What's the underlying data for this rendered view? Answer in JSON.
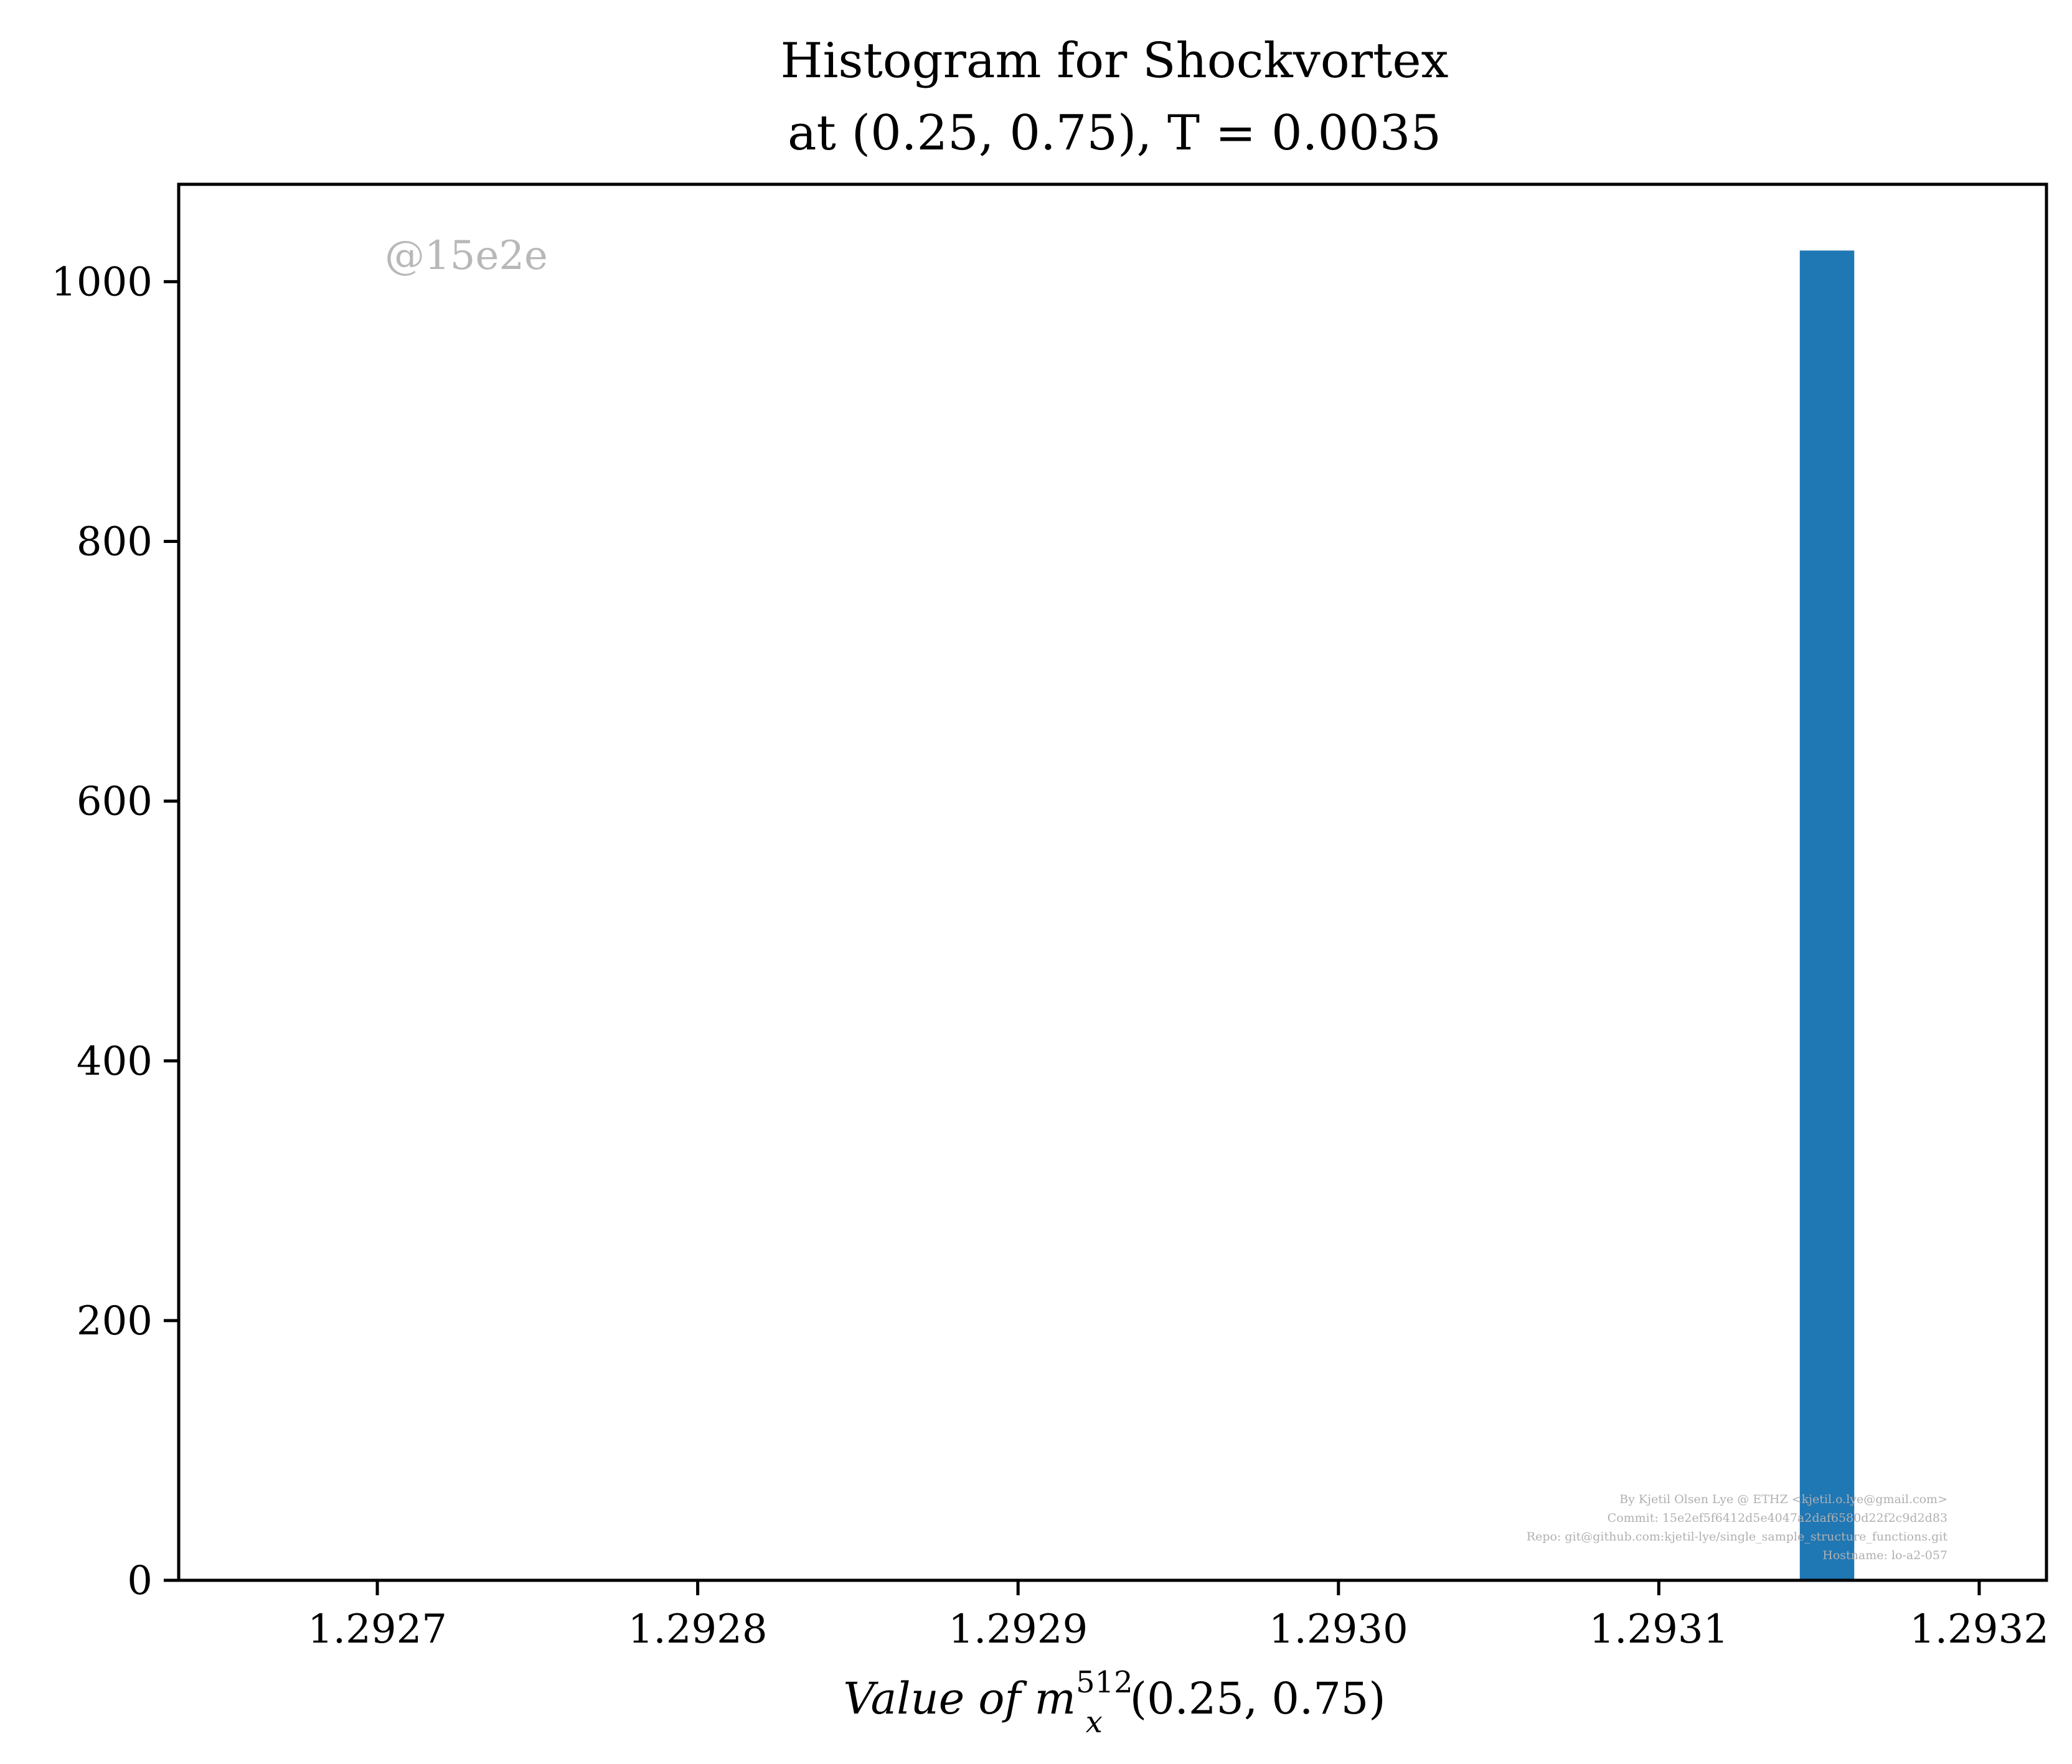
{
  "chart_data": {
    "type": "bar",
    "subtype": "histogram",
    "title_line1": "Histogram for Shockvortex",
    "title_line2": "at (0.25, 0.75), T = 0.0035",
    "xlabel": "Value of m",
    "xlabel_sup": "512",
    "xlabel_sub": "x",
    "xlabel_suffix": "(0.25, 0.75)",
    "ylabel": "",
    "xlim": [
      1.292638,
      1.293221
    ],
    "ylim": [
      0,
      1075
    ],
    "x_ticks": [
      1.2927,
      1.2928,
      1.2929,
      1.293,
      1.2931,
      1.2932
    ],
    "x_tick_labels": [
      "1.2927",
      "1.2928",
      "1.2929",
      "1.2930",
      "1.2931",
      "1.2932"
    ],
    "y_ticks": [
      0,
      200,
      400,
      600,
      800,
      1000
    ],
    "y_tick_labels": [
      "0",
      "200",
      "400",
      "600",
      "800",
      "1000"
    ],
    "bins": [
      {
        "x_start": 1.293144,
        "x_end": 1.293161,
        "count": 1024
      }
    ],
    "bar_color": "#1f77b4",
    "grid": false,
    "legend": "none"
  },
  "watermark": "@15e2e",
  "footer": {
    "line1": "By Kjetil Olsen Lye @ ETHZ <kjetil.o.lye@gmail.com>",
    "line2": "Commit: 15e2ef5f6412d5e4047a2daf6580d22f2c9d2d83",
    "line3": "Repo: git@github.com:kjetil-lye/single_sample_structure_functions.git",
    "line4": "Hostname: lo-a2-057"
  }
}
